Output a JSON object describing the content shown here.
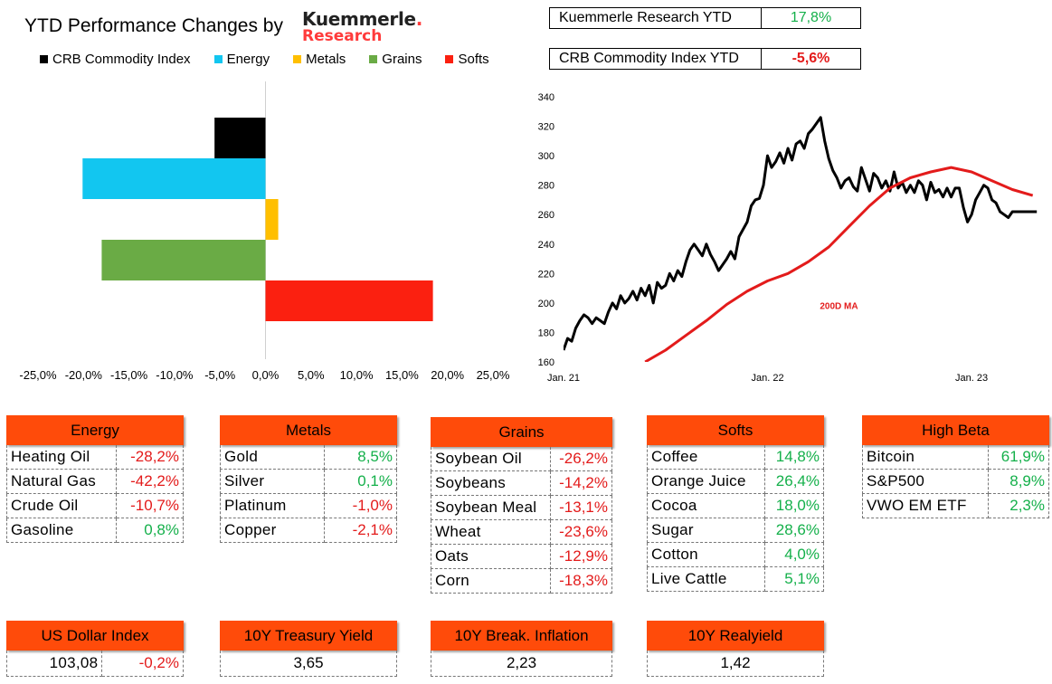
{
  "header": {
    "title": "YTD Performance Changes by",
    "logo_line1": "Kuemmerle",
    "logo_dot": ".",
    "logo_line2": "Research"
  },
  "ytd": [
    {
      "label": "Kuemmerle Research YTD",
      "value": "17,8%",
      "color": "#14b04a"
    },
    {
      "label": "CRB Commodity Index YTD",
      "value": "-5,6%",
      "color": "#e31b1b"
    }
  ],
  "chart_data": [
    {
      "type": "bar",
      "orientation": "horizontal",
      "categories": [
        "CRB Commodity Index",
        "Energy",
        "Metals",
        "Grains",
        "Softs"
      ],
      "values": [
        -5.6,
        -20.1,
        1.4,
        -18.0,
        18.4
      ],
      "colors": [
        "#000000",
        "#12c6f0",
        "#ffbf00",
        "#6aab45",
        "#fb2010"
      ],
      "xlim": [
        -25,
        25
      ],
      "xticks": [
        "-25,0%",
        "-20,0%",
        "-15,0%",
        "-10,0%",
        "-5,0%",
        "0,0%",
        "5,0%",
        "10,0%",
        "15,0%",
        "20,0%",
        "25,0%"
      ],
      "legend_position": "top",
      "grid": false
    },
    {
      "type": "line",
      "x_labels": [
        "Jan. 21",
        "Jan. 22",
        "Jan. 23"
      ],
      "yticks": [
        160,
        180,
        200,
        220,
        240,
        260,
        280,
        300,
        320,
        340
      ],
      "ylim": [
        160,
        340
      ],
      "x_range": [
        2021.0,
        2023.35
      ],
      "annotation": "200D MA",
      "series": [
        {
          "name": "CRB Commodity Index",
          "color": "#000000",
          "x": [
            2021.0,
            2021.02,
            2021.04,
            2021.06,
            2021.08,
            2021.1,
            2021.12,
            2021.14,
            2021.16,
            2021.18,
            2021.2,
            2021.22,
            2021.24,
            2021.26,
            2021.28,
            2021.3,
            2021.32,
            2021.34,
            2021.36,
            2021.38,
            2021.4,
            2021.42,
            2021.44,
            2021.46,
            2021.48,
            2021.5,
            2021.52,
            2021.54,
            2021.56,
            2021.58,
            2021.6,
            2021.62,
            2021.64,
            2021.66,
            2021.68,
            2021.7,
            2021.72,
            2021.74,
            2021.76,
            2021.78,
            2021.8,
            2021.82,
            2021.84,
            2021.86,
            2021.88,
            2021.9,
            2021.92,
            2021.94,
            2021.96,
            2021.98,
            2022.0,
            2022.02,
            2022.04,
            2022.06,
            2022.08,
            2022.1,
            2022.12,
            2022.14,
            2022.16,
            2022.18,
            2022.2,
            2022.22,
            2022.24,
            2022.26,
            2022.28,
            2022.3,
            2022.32,
            2022.34,
            2022.36,
            2022.38,
            2022.4,
            2022.42,
            2022.44,
            2022.46,
            2022.48,
            2022.5,
            2022.52,
            2022.54,
            2022.56,
            2022.58,
            2022.6,
            2022.62,
            2022.64,
            2022.66,
            2022.68,
            2022.7,
            2022.72,
            2022.74,
            2022.76,
            2022.78,
            2022.8,
            2022.82,
            2022.84,
            2022.86,
            2022.88,
            2022.9,
            2022.92,
            2022.94,
            2022.96,
            2022.98,
            2023.0,
            2023.02,
            2023.04,
            2023.06,
            2023.08,
            2023.1,
            2023.12,
            2023.14,
            2023.16,
            2023.18,
            2023.2,
            2023.22,
            2023.24,
            2023.26,
            2023.28,
            2023.3,
            2023.32
          ],
          "y": [
            168,
            176,
            174,
            183,
            188,
            192,
            190,
            186,
            190,
            188,
            186,
            194,
            200,
            196,
            205,
            200,
            203,
            208,
            202,
            210,
            205,
            212,
            200,
            214,
            210,
            212,
            220,
            215,
            222,
            218,
            228,
            236,
            240,
            236,
            232,
            240,
            233,
            228,
            222,
            226,
            230,
            235,
            230,
            245,
            250,
            255,
            266,
            270,
            271,
            280,
            300,
            292,
            296,
            302,
            295,
            305,
            297,
            308,
            310,
            305,
            315,
            318,
            322,
            326,
            310,
            298,
            290,
            285,
            278,
            283,
            285,
            279,
            276,
            292,
            284,
            276,
            288,
            285,
            278,
            283,
            276,
            289,
            278,
            282,
            275,
            280,
            275,
            283,
            280,
            270,
            282,
            275,
            277,
            272,
            278,
            272,
            278,
            278,
            265,
            255,
            260,
            270,
            275,
            280,
            278,
            270,
            268,
            262,
            260,
            258,
            262,
            262,
            262,
            262,
            262,
            262,
            262
          ],
          "connect": true
        },
        {
          "name": "200D MA",
          "color": "#e31b1b",
          "x": [
            2021.4,
            2021.5,
            2021.6,
            2021.7,
            2021.8,
            2021.9,
            2022.0,
            2022.1,
            2022.2,
            2022.3,
            2022.4,
            2022.5,
            2022.6,
            2022.7,
            2022.8,
            2022.9,
            2023.0,
            2023.1,
            2023.2,
            2023.3
          ],
          "y": [
            160,
            168,
            178,
            188,
            199,
            208,
            215,
            220,
            228,
            238,
            252,
            266,
            278,
            285,
            289,
            292,
            289,
            283,
            277,
            273
          ]
        }
      ]
    }
  ],
  "legend": [
    {
      "label": "CRB Commodity Index",
      "color": "#000000"
    },
    {
      "label": "Energy",
      "color": "#12c6f0"
    },
    {
      "label": "Metals",
      "color": "#ffbf00"
    },
    {
      "label": "Grains",
      "color": "#6aab45"
    },
    {
      "label": "Softs",
      "color": "#fb2010"
    }
  ],
  "panels": [
    {
      "title": "Energy",
      "rows": [
        {
          "name": "Heating Oil",
          "value": "-28,2%",
          "sign": "neg"
        },
        {
          "name": "Natural Gas",
          "value": "-42,2%",
          "sign": "neg"
        },
        {
          "name": "Crude Oil",
          "value": "-10,7%",
          "sign": "neg"
        },
        {
          "name": "Gasoline",
          "value": "0,8%",
          "sign": "pos"
        }
      ]
    },
    {
      "title": "Metals",
      "rows": [
        {
          "name": "Gold",
          "value": "8,5%",
          "sign": "pos"
        },
        {
          "name": "Silver",
          "value": "0,1%",
          "sign": "pos"
        },
        {
          "name": "Platinum",
          "value": "-1,0%",
          "sign": "neg"
        },
        {
          "name": "Copper",
          "value": "-2,1%",
          "sign": "neg"
        }
      ]
    },
    {
      "title": "Grains",
      "rows": [
        {
          "name": "Soybean Oil",
          "value": "-26,2%",
          "sign": "neg"
        },
        {
          "name": "Soybeans",
          "value": "-14,2%",
          "sign": "neg"
        },
        {
          "name": "Soybean Meal",
          "value": "-13,1%",
          "sign": "neg"
        },
        {
          "name": "Wheat",
          "value": "-23,6%",
          "sign": "neg"
        },
        {
          "name": "Oats",
          "value": "-12,9%",
          "sign": "neg"
        },
        {
          "name": "Corn",
          "value": "-18,3%",
          "sign": "neg"
        }
      ]
    },
    {
      "title": "Softs",
      "rows": [
        {
          "name": "Coffee",
          "value": "14,8%",
          "sign": "pos"
        },
        {
          "name": "Orange Juice",
          "value": "26,4%",
          "sign": "pos"
        },
        {
          "name": "Cocoa",
          "value": "18,0%",
          "sign": "pos"
        },
        {
          "name": "Sugar",
          "value": "28,6%",
          "sign": "pos"
        },
        {
          "name": "Cotton",
          "value": "4,0%",
          "sign": "pos"
        },
        {
          "name": "Live Cattle",
          "value": "5,1%",
          "sign": "pos"
        }
      ]
    },
    {
      "title": "High Beta",
      "rows": [
        {
          "name": "Bitcoin",
          "value": "61,9%",
          "sign": "pos"
        },
        {
          "name": "S&P500",
          "value": "8,9%",
          "sign": "pos"
        },
        {
          "name": "VWO EM ETF",
          "value": "2,3%",
          "sign": "pos"
        }
      ]
    }
  ],
  "bottom": [
    {
      "title": "US Dollar Index",
      "value": "103,08",
      "change": "-0,2%",
      "sign": "neg"
    },
    {
      "title": "10Y Treasury Yield",
      "value": "3,65"
    },
    {
      "title": "10Y Break. Inflation",
      "value": "2,23"
    },
    {
      "title": "10Y Realyield",
      "value": "1,42"
    }
  ]
}
